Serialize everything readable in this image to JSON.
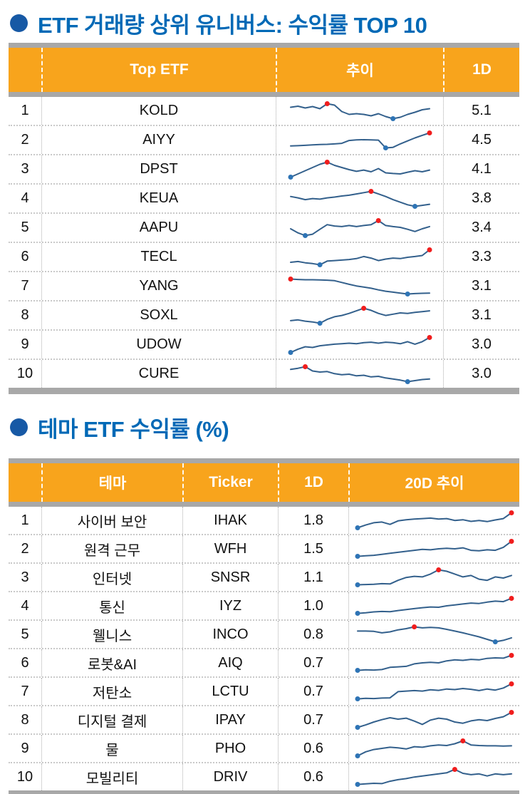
{
  "colors": {
    "title_blue": "#0169B6",
    "bullet_blue": "#1759A5",
    "header_orange": "#F8A41C",
    "header_text": "#FFFFFF",
    "gray_bar": "#A8A8A8",
    "row_text": "#111111",
    "spark_line": "#33608C",
    "spark_max_dot": "#F01D1D",
    "spark_min_dot": "#2E74B5"
  },
  "section1": {
    "title": "ETF 거래량 상위 유니버스: 수익률 TOP 10",
    "table": {
      "headers": {
        "rank": "",
        "name": "Top ETF",
        "trend": "추이",
        "d1": "1D"
      },
      "rows": [
        {
          "rank": "1",
          "name": "KOLD",
          "d1": "5.1"
        },
        {
          "rank": "2",
          "name": "AIYY",
          "d1": "4.5"
        },
        {
          "rank": "3",
          "name": "DPST",
          "d1": "4.1"
        },
        {
          "rank": "4",
          "name": "KEUA",
          "d1": "3.8"
        },
        {
          "rank": "5",
          "name": "AAPU",
          "d1": "3.4"
        },
        {
          "rank": "6",
          "name": "TECL",
          "d1": "3.3"
        },
        {
          "rank": "7",
          "name": "YANG",
          "d1": "3.1"
        },
        {
          "rank": "8",
          "name": "SOXL",
          "d1": "3.1"
        },
        {
          "rank": "9",
          "name": "UDOW",
          "d1": "3.0"
        },
        {
          "rank": "10",
          "name": "CURE",
          "d1": "3.0"
        }
      ]
    }
  },
  "section2": {
    "title": "테마 ETF 수익률 (%)",
    "table": {
      "headers": {
        "rank": "",
        "theme": "테마",
        "ticker": "Ticker",
        "d1": "1D",
        "trend": "20D 추이"
      },
      "rows": [
        {
          "rank": "1",
          "theme": "사이버 보안",
          "ticker": "IHAK",
          "d1": "1.8"
        },
        {
          "rank": "2",
          "theme": "원격 근무",
          "ticker": "WFH",
          "d1": "1.5"
        },
        {
          "rank": "3",
          "theme": "인터넷",
          "ticker": "SNSR",
          "d1": "1.1"
        },
        {
          "rank": "4",
          "theme": "통신",
          "ticker": "IYZ",
          "d1": "1.0"
        },
        {
          "rank": "5",
          "theme": "웰니스",
          "ticker": "INCO",
          "d1": "0.8"
        },
        {
          "rank": "6",
          "theme": "로봇&AI",
          "ticker": "AIQ",
          "d1": "0.7"
        },
        {
          "rank": "7",
          "theme": "저탄소",
          "ticker": "LCTU",
          "d1": "0.7"
        },
        {
          "rank": "8",
          "theme": "디지털 결제",
          "ticker": "IPAY",
          "d1": "0.7"
        },
        {
          "rank": "9",
          "theme": "물",
          "ticker": "PHO",
          "d1": "0.6"
        },
        {
          "rank": "10",
          "theme": "모빌리티",
          "ticker": "DRIV",
          "d1": "0.6"
        }
      ]
    }
  },
  "chart_data": [
    {
      "type": "line",
      "title": "Top ETF 추이 sparklines (relative shape, red dot = period max, blue dot = period min)",
      "legend": "none",
      "axes": "hidden",
      "series": [
        {
          "name": "KOLD",
          "values": [
            62,
            65,
            60,
            64,
            58,
            72,
            68,
            50,
            42,
            44,
            42,
            38,
            44,
            36,
            30,
            34,
            42,
            48,
            55,
            58
          ]
        },
        {
          "name": "AIYY",
          "values": [
            25,
            26,
            28,
            30,
            32,
            33,
            35,
            38,
            52,
            55,
            56,
            55,
            54,
            15,
            18,
            35,
            50,
            65,
            78,
            90
          ]
        },
        {
          "name": "DPST",
          "values": [
            15,
            30,
            45,
            60,
            75,
            85,
            70,
            60,
            50,
            42,
            48,
            40,
            55,
            35,
            32,
            30,
            38,
            45,
            40,
            48
          ]
        },
        {
          "name": "KEUA",
          "values": [
            60,
            55,
            48,
            52,
            50,
            55,
            58,
            62,
            65,
            70,
            75,
            80,
            70,
            60,
            48,
            38,
            28,
            22,
            26,
            30
          ]
        },
        {
          "name": "AAPU",
          "values": [
            50,
            35,
            25,
            30,
            48,
            65,
            60,
            58,
            62,
            58,
            62,
            65,
            80,
            62,
            58,
            55,
            48,
            40,
            50,
            58
          ]
        },
        {
          "name": "TECL",
          "values": [
            35,
            38,
            33,
            30,
            25,
            40,
            42,
            44,
            46,
            50,
            58,
            52,
            42,
            48,
            52,
            50,
            55,
            58,
            62,
            85
          ]
        },
        {
          "name": "YANG",
          "values": [
            85,
            83,
            82,
            82,
            81,
            80,
            78,
            70,
            62,
            55,
            50,
            45,
            38,
            32,
            28,
            24,
            20,
            22,
            23,
            24
          ]
        },
        {
          "name": "SOXL",
          "values": [
            30,
            33,
            28,
            25,
            20,
            35,
            45,
            50,
            58,
            68,
            78,
            70,
            58,
            50,
            55,
            60,
            58,
            62,
            65,
            68
          ]
        },
        {
          "name": "UDOW",
          "values": [
            15,
            28,
            38,
            35,
            42,
            45,
            48,
            50,
            52,
            50,
            54,
            56,
            52,
            56,
            54,
            50,
            58,
            48,
            58,
            75
          ]
        },
        {
          "name": "CURE",
          "values": [
            68,
            72,
            78,
            62,
            58,
            60,
            52,
            48,
            50,
            44,
            46,
            40,
            42,
            36,
            32,
            28,
            22,
            26,
            30,
            32
          ]
        }
      ]
    },
    {
      "type": "line",
      "title": "테마 ETF 20D 추이 sparklines (relative shape, red dot = period max, blue dot = period min)",
      "legend": "none",
      "axes": "hidden",
      "series": [
        {
          "name": "IHAK",
          "values": [
            20,
            32,
            42,
            45,
            35,
            50,
            55,
            58,
            60,
            62,
            58,
            60,
            52,
            55,
            48,
            52,
            47,
            54,
            60,
            85
          ]
        },
        {
          "name": "WFH",
          "values": [
            20,
            22,
            24,
            28,
            32,
            36,
            40,
            44,
            48,
            46,
            50,
            52,
            50,
            54,
            44,
            42,
            46,
            44,
            56,
            80
          ]
        },
        {
          "name": "SNSR",
          "values": [
            22,
            23,
            24,
            26,
            25,
            38,
            48,
            52,
            50,
            60,
            75,
            70,
            60,
            50,
            55,
            42,
            38,
            50,
            46,
            55
          ]
        },
        {
          "name": "IYZ",
          "values": [
            18,
            20,
            24,
            26,
            25,
            30,
            34,
            38,
            42,
            45,
            44,
            50,
            54,
            58,
            62,
            60,
            66,
            70,
            68,
            82
          ]
        },
        {
          "name": "INCO",
          "values": [
            65,
            65,
            64,
            58,
            62,
            70,
            75,
            82,
            78,
            80,
            78,
            72,
            65,
            58,
            50,
            42,
            32,
            22,
            28,
            38
          ]
        },
        {
          "name": "AIQ",
          "values": [
            18,
            20,
            19,
            21,
            30,
            32,
            34,
            44,
            48,
            50,
            48,
            56,
            60,
            58,
            62,
            60,
            66,
            68,
            67,
            78
          ]
        },
        {
          "name": "LCTU",
          "values": [
            20,
            22,
            21,
            23,
            24,
            48,
            50,
            52,
            50,
            55,
            53,
            58,
            56,
            60,
            57,
            52,
            58,
            54,
            62,
            78
          ]
        },
        {
          "name": "IPAY",
          "values": [
            18,
            28,
            40,
            50,
            58,
            52,
            56,
            44,
            30,
            48,
            56,
            52,
            40,
            35,
            45,
            50,
            46,
            55,
            62,
            80
          ]
        },
        {
          "name": "PHO",
          "values": [
            20,
            34,
            42,
            46,
            50,
            48,
            44,
            52,
            50,
            55,
            58,
            56,
            62,
            72,
            58,
            56,
            55,
            55,
            54,
            55
          ]
        },
        {
          "name": "DRIV",
          "values": [
            18,
            20,
            22,
            21,
            30,
            36,
            40,
            46,
            50,
            54,
            58,
            62,
            75,
            60,
            55,
            58,
            50,
            58,
            55,
            58
          ]
        }
      ]
    }
  ]
}
